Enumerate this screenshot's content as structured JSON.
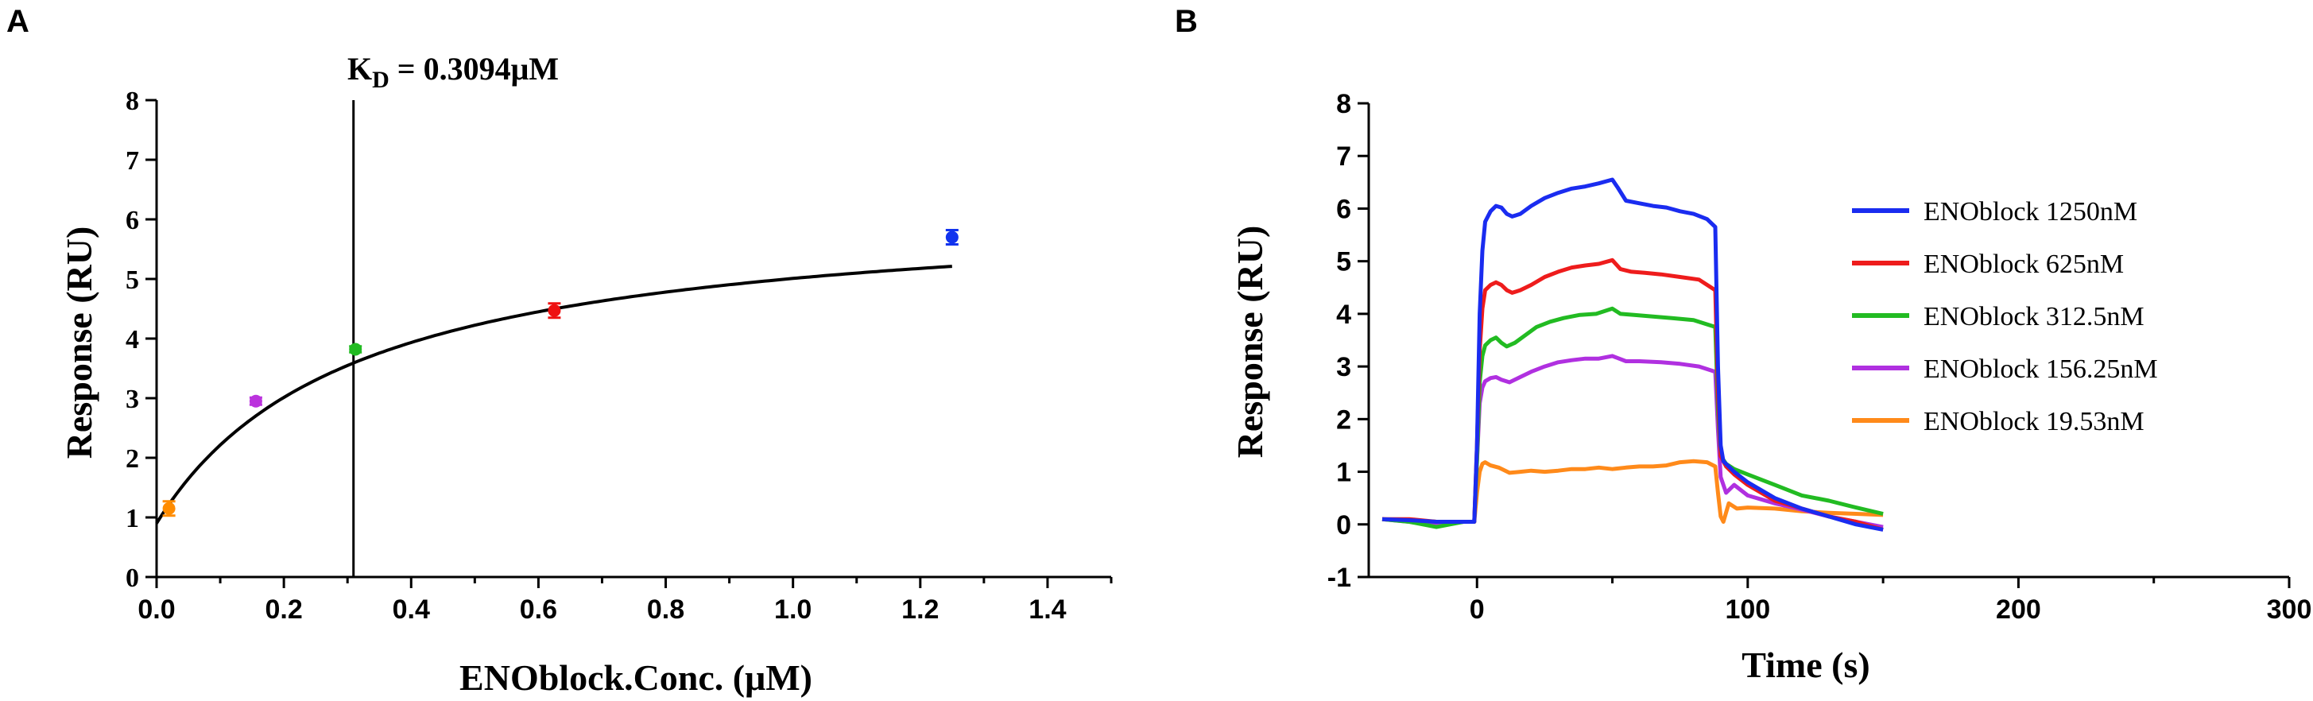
{
  "chart_data": [
    {
      "panel": "A",
      "type": "scatter",
      "xlabel": "ENOblock.Conc. (μM)",
      "ylabel": "Response (RU)",
      "xlim": [
        0,
        1.5
      ],
      "ylim": [
        0,
        8
      ],
      "xticks": [
        "0.0",
        "0.2",
        "0.4",
        "0.6",
        "0.8",
        "1.0",
        "1.2",
        "1.4"
      ],
      "yticks": [
        "0",
        "1",
        "2",
        "3",
        "4",
        "5",
        "6",
        "7",
        "8"
      ],
      "annotation": {
        "kd_main": "K",
        "kd_sub": "D",
        "kd_value": " = 0.3094μM",
        "vline_x": 0.3094
      },
      "points": [
        {
          "x": 0.0195,
          "y": 1.15,
          "err": 0.12,
          "color": "#ff8c00"
        },
        {
          "x": 0.156,
          "y": 2.95,
          "err": 0.06,
          "color": "#bb33dd"
        },
        {
          "x": 0.3125,
          "y": 3.82,
          "err": 0.05,
          "color": "#22bb22"
        },
        {
          "x": 0.625,
          "y": 4.47,
          "err": 0.12,
          "color": "#ee1111"
        },
        {
          "x": 1.25,
          "y": 5.7,
          "err": 0.12,
          "color": "#1133ee"
        }
      ],
      "fit": {
        "model": "steady-state",
        "rmax": 6.28,
        "kd": 0.3094,
        "offset": 0.9,
        "x_range": [
          0,
          1.25
        ],
        "color": "#000000"
      }
    },
    {
      "panel": "B",
      "type": "line",
      "xlabel": "Time (s)",
      "ylabel": "Response (RU)",
      "xlim": [
        -40,
        300
      ],
      "ylim": [
        -1,
        8
      ],
      "xticks": [
        "0",
        "100",
        "200",
        "300"
      ],
      "yticks": [
        "-1",
        "0",
        "1",
        "2",
        "3",
        "4",
        "5",
        "6",
        "7",
        "8"
      ],
      "series": [
        {
          "name": "ENOblock 1250nM",
          "color": "#1a2cf0",
          "points": [
            [
              -35,
              0.1
            ],
            [
              -25,
              0.08
            ],
            [
              -15,
              0.05
            ],
            [
              -5,
              0.05
            ],
            [
              -1,
              0.05
            ],
            [
              0,
              1.5
            ],
            [
              1,
              4.0
            ],
            [
              2,
              5.2
            ],
            [
              3,
              5.75
            ],
            [
              5,
              5.95
            ],
            [
              7,
              6.05
            ],
            [
              9,
              6.02
            ],
            [
              11,
              5.9
            ],
            [
              13,
              5.85
            ],
            [
              16,
              5.9
            ],
            [
              20,
              6.05
            ],
            [
              25,
              6.2
            ],
            [
              30,
              6.3
            ],
            [
              35,
              6.38
            ],
            [
              40,
              6.42
            ],
            [
              45,
              6.48
            ],
            [
              50,
              6.55
            ],
            [
              52,
              6.4
            ],
            [
              55,
              6.15
            ],
            [
              60,
              6.1
            ],
            [
              65,
              6.05
            ],
            [
              70,
              6.02
            ],
            [
              75,
              5.95
            ],
            [
              80,
              5.9
            ],
            [
              85,
              5.8
            ],
            [
              88,
              5.65
            ],
            [
              89,
              3.0
            ],
            [
              90,
              1.5
            ],
            [
              91,
              1.2
            ],
            [
              95,
              1.0
            ],
            [
              100,
              0.8
            ],
            [
              110,
              0.5
            ],
            [
              120,
              0.3
            ],
            [
              130,
              0.15
            ],
            [
              140,
              0.0
            ],
            [
              150,
              -0.1
            ]
          ]
        },
        {
          "name": "ENOblock 625nM",
          "color": "#ee1c1c",
          "points": [
            [
              -35,
              0.1
            ],
            [
              -25,
              0.1
            ],
            [
              -15,
              0.05
            ],
            [
              -5,
              0.05
            ],
            [
              -1,
              0.05
            ],
            [
              0,
              1.5
            ],
            [
              1,
              3.3
            ],
            [
              2,
              4.1
            ],
            [
              3,
              4.45
            ],
            [
              5,
              4.55
            ],
            [
              7,
              4.6
            ],
            [
              9,
              4.55
            ],
            [
              11,
              4.45
            ],
            [
              13,
              4.4
            ],
            [
              16,
              4.45
            ],
            [
              20,
              4.55
            ],
            [
              25,
              4.7
            ],
            [
              30,
              4.8
            ],
            [
              35,
              4.88
            ],
            [
              40,
              4.92
            ],
            [
              45,
              4.95
            ],
            [
              50,
              5.02
            ],
            [
              53,
              4.85
            ],
            [
              57,
              4.8
            ],
            [
              62,
              4.78
            ],
            [
              68,
              4.75
            ],
            [
              75,
              4.7
            ],
            [
              82,
              4.65
            ],
            [
              88,
              4.45
            ],
            [
              89,
              2.5
            ],
            [
              90,
              1.3
            ],
            [
              92,
              1.1
            ],
            [
              95,
              0.95
            ],
            [
              100,
              0.75
            ],
            [
              110,
              0.45
            ],
            [
              120,
              0.3
            ],
            [
              130,
              0.15
            ],
            [
              140,
              0.05
            ],
            [
              150,
              -0.1
            ]
          ]
        },
        {
          "name": "ENOblock 312.5nM",
          "color": "#22bb22",
          "points": [
            [
              -35,
              0.1
            ],
            [
              -25,
              0.05
            ],
            [
              -15,
              -0.05
            ],
            [
              -5,
              0.05
            ],
            [
              -1,
              0.05
            ],
            [
              0,
              1.2
            ],
            [
              1,
              2.7
            ],
            [
              2,
              3.2
            ],
            [
              3,
              3.4
            ],
            [
              5,
              3.5
            ],
            [
              7,
              3.55
            ],
            [
              9,
              3.45
            ],
            [
              11,
              3.38
            ],
            [
              14,
              3.45
            ],
            [
              18,
              3.6
            ],
            [
              22,
              3.75
            ],
            [
              27,
              3.85
            ],
            [
              32,
              3.92
            ],
            [
              38,
              3.98
            ],
            [
              44,
              4.0
            ],
            [
              50,
              4.1
            ],
            [
              53,
              4.0
            ],
            [
              58,
              3.98
            ],
            [
              65,
              3.95
            ],
            [
              72,
              3.92
            ],
            [
              80,
              3.88
            ],
            [
              88,
              3.75
            ],
            [
              89,
              2.2
            ],
            [
              90,
              1.3
            ],
            [
              92,
              1.15
            ],
            [
              95,
              1.05
            ],
            [
              100,
              0.95
            ],
            [
              110,
              0.75
            ],
            [
              120,
              0.55
            ],
            [
              130,
              0.45
            ],
            [
              140,
              0.32
            ],
            [
              150,
              0.2
            ]
          ]
        },
        {
          "name": "ENOblock 156.25nM",
          "color": "#b030e0",
          "points": [
            [
              -35,
              0.1
            ],
            [
              -25,
              0.05
            ],
            [
              -15,
              0.0
            ],
            [
              -5,
              0.05
            ],
            [
              -1,
              0.05
            ],
            [
              0,
              1.2
            ],
            [
              1,
              2.3
            ],
            [
              2,
              2.6
            ],
            [
              3,
              2.72
            ],
            [
              5,
              2.78
            ],
            [
              7,
              2.8
            ],
            [
              9,
              2.75
            ],
            [
              12,
              2.7
            ],
            [
              16,
              2.8
            ],
            [
              20,
              2.9
            ],
            [
              25,
              3.0
            ],
            [
              30,
              3.08
            ],
            [
              35,
              3.12
            ],
            [
              40,
              3.15
            ],
            [
              45,
              3.15
            ],
            [
              50,
              3.2
            ],
            [
              55,
              3.1
            ],
            [
              60,
              3.1
            ],
            [
              68,
              3.08
            ],
            [
              75,
              3.05
            ],
            [
              82,
              3.0
            ],
            [
              88,
              2.9
            ],
            [
              89,
              1.8
            ],
            [
              90,
              0.9
            ],
            [
              92,
              0.6
            ],
            [
              95,
              0.75
            ],
            [
              100,
              0.55
            ],
            [
              110,
              0.4
            ],
            [
              120,
              0.28
            ],
            [
              130,
              0.15
            ],
            [
              140,
              0.05
            ],
            [
              150,
              -0.05
            ]
          ]
        },
        {
          "name": "ENOblock 19.53nM",
          "color": "#ff8a1a",
          "points": [
            [
              -35,
              0.1
            ],
            [
              -25,
              0.08
            ],
            [
              -15,
              0.05
            ],
            [
              -5,
              0.05
            ],
            [
              -1,
              0.05
            ],
            [
              0,
              0.6
            ],
            [
              1,
              1.0
            ],
            [
              2,
              1.15
            ],
            [
              3,
              1.18
            ],
            [
              5,
              1.12
            ],
            [
              8,
              1.08
            ],
            [
              12,
              0.98
            ],
            [
              16,
              1.0
            ],
            [
              20,
              1.02
            ],
            [
              25,
              1.0
            ],
            [
              30,
              1.02
            ],
            [
              35,
              1.05
            ],
            [
              40,
              1.05
            ],
            [
              45,
              1.08
            ],
            [
              50,
              1.05
            ],
            [
              55,
              1.08
            ],
            [
              60,
              1.1
            ],
            [
              65,
              1.1
            ],
            [
              70,
              1.12
            ],
            [
              75,
              1.18
            ],
            [
              80,
              1.2
            ],
            [
              85,
              1.18
            ],
            [
              88,
              1.1
            ],
            [
              89,
              0.6
            ],
            [
              90,
              0.15
            ],
            [
              91,
              0.05
            ],
            [
              93,
              0.4
            ],
            [
              96,
              0.3
            ],
            [
              100,
              0.32
            ],
            [
              110,
              0.3
            ],
            [
              120,
              0.25
            ],
            [
              130,
              0.22
            ],
            [
              140,
              0.2
            ],
            [
              150,
              0.18
            ]
          ]
        }
      ]
    }
  ]
}
